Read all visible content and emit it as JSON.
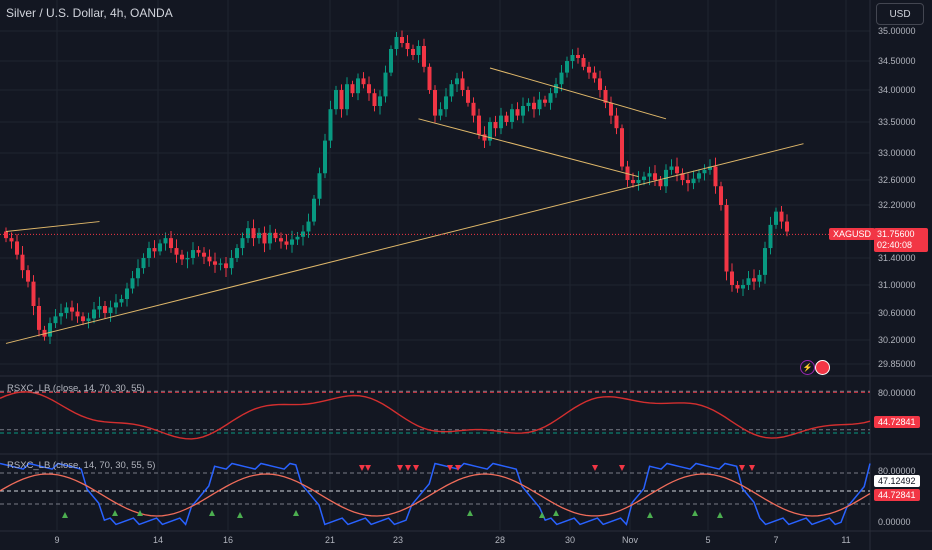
{
  "header": {
    "title": "Silver / U.S. Dollar, 4h, OANDA",
    "currency_button": "USD"
  },
  "colors": {
    "background": "#131722",
    "up": "#089981",
    "down": "#f23645",
    "grid": "#1f2430",
    "trend": "#e0b86a",
    "axis_text": "#b2b5be"
  },
  "price_axis": {
    "labels": [
      "35.00000",
      "34.50000",
      "34.00000",
      "33.50000",
      "33.00000",
      "32.60000",
      "32.20000",
      "31.75600",
      "31.40000",
      "31.00000",
      "30.60000",
      "30.20000",
      "29.85000"
    ]
  },
  "current_price": {
    "symbol": "XAGUSD",
    "price": "31.75600",
    "countdown": "02:40:08"
  },
  "indicators": [
    {
      "label": "RSXC_LB (close, 14, 70, 30, 55)",
      "axis_labels": [
        "80.00000"
      ],
      "value": "44.72841"
    },
    {
      "label": "RSXC_LB (close, 14, 70, 30, 55, 5)",
      "axis_labels": [
        "80.00000",
        "0.00000"
      ],
      "values": [
        "47.12492",
        "44.72841"
      ]
    }
  ],
  "time_axis": {
    "labels": [
      "9",
      "14",
      "16",
      "21",
      "23",
      "28",
      "30",
      "Nov",
      "5",
      "7",
      "11"
    ]
  },
  "icons": [
    "lightning-icon",
    "us-flag-icon"
  ],
  "chart_data": {
    "type": "candlestick",
    "symbol": "XAGUSD",
    "timeframe": "4h",
    "ylim": [
      29.85,
      35.1
    ],
    "closes": [
      31.7,
      31.65,
      31.45,
      31.22,
      31.05,
      30.7,
      30.35,
      30.25,
      30.45,
      30.55,
      30.6,
      30.68,
      30.62,
      30.55,
      30.48,
      30.52,
      30.65,
      30.7,
      30.6,
      30.68,
      30.75,
      30.8,
      30.95,
      31.1,
      31.25,
      31.4,
      31.55,
      31.5,
      31.62,
      31.7,
      31.55,
      31.45,
      31.38,
      31.4,
      31.52,
      31.48,
      31.42,
      31.35,
      31.3,
      31.32,
      31.25,
      31.4,
      31.55,
      31.7,
      31.85,
      31.7,
      31.78,
      31.62,
      31.78,
      31.7,
      31.65,
      31.6,
      31.68,
      31.72,
      31.8,
      31.95,
      32.3,
      32.7,
      33.2,
      33.7,
      34.0,
      33.7,
      34.1,
      33.95,
      34.2,
      34.1,
      33.95,
      33.75,
      33.9,
      34.3,
      34.7,
      34.9,
      34.8,
      34.7,
      34.6,
      34.75,
      34.4,
      34.0,
      33.6,
      33.7,
      33.9,
      34.1,
      34.2,
      34.0,
      33.8,
      33.6,
      33.3,
      33.2,
      33.5,
      33.4,
      33.6,
      33.5,
      33.7,
      33.6,
      33.75,
      33.8,
      33.7,
      33.85,
      33.8,
      33.95,
      34.1,
      34.3,
      34.5,
      34.6,
      34.55,
      34.4,
      34.3,
      34.2,
      34.0,
      33.8,
      33.6,
      33.4,
      32.8,
      32.6,
      32.55,
      32.6,
      32.65,
      32.7,
      32.6,
      32.5,
      32.75,
      32.8,
      32.7,
      32.6,
      32.55,
      32.62,
      32.7,
      32.75,
      32.8,
      32.5,
      32.2,
      31.2,
      31.0,
      30.95,
      31.0,
      31.1,
      31.05,
      31.15,
      31.55,
      31.9,
      32.1,
      31.95,
      31.8
    ],
    "trendlines": [
      {
        "from": [
          0,
          30.15
        ],
        "to": [
          145,
          33.15
        ]
      },
      {
        "from": [
          0,
          31.8
        ],
        "to": [
          17,
          31.95
        ]
      },
      {
        "from": [
          88,
          34.38
        ],
        "to": [
          120,
          33.55
        ]
      },
      {
        "from": [
          75,
          33.55
        ],
        "to": [
          115,
          32.65
        ]
      }
    ],
    "indicator1": {
      "levels": [
        70,
        30,
        55
      ],
      "ylim": [
        0,
        100
      ],
      "value": 44.72841
    },
    "indicator2": {
      "levels": [
        70,
        30,
        55
      ],
      "ylim": [
        0,
        100
      ],
      "values": [
        47.12492,
        44.72841
      ]
    }
  }
}
